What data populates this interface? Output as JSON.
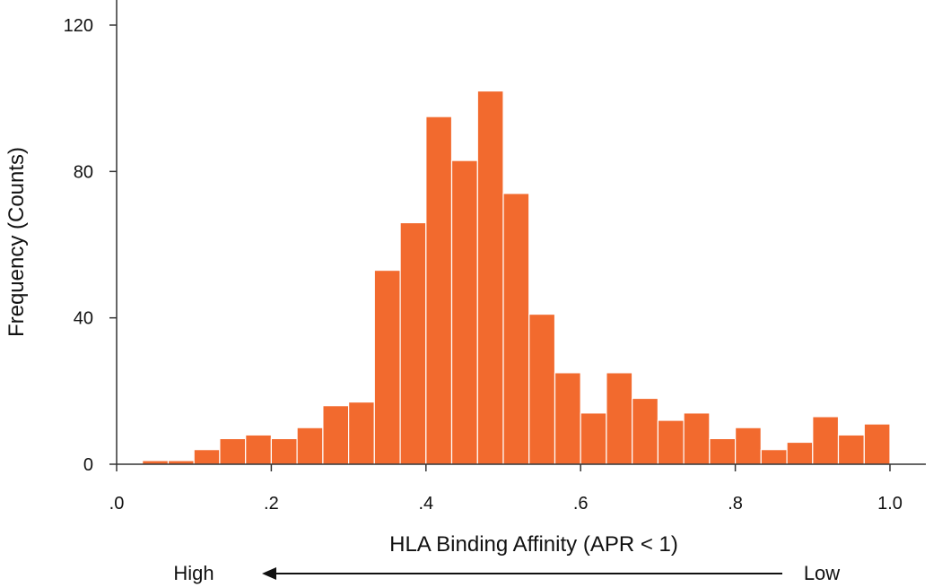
{
  "chart_data": {
    "type": "bar",
    "subtype": "histogram",
    "xlabel": "HLA Binding Affinity (APR < 1)",
    "ylabel": "Frequency (Counts)",
    "xlim": [
      0,
      1.0
    ],
    "ylim": [
      0,
      120
    ],
    "x_ticks": [
      0,
      0.2,
      0.4,
      0.6,
      0.8,
      1.0
    ],
    "x_tick_labels": [
      ".0",
      ".2",
      ".4",
      ".6",
      ".8",
      "1.0"
    ],
    "y_ticks": [
      0,
      40,
      80,
      120
    ],
    "y_tick_labels": [
      "0",
      "40",
      "80",
      "120"
    ],
    "bin_width": 0.0333,
    "bins": [
      {
        "x0": 0.0333,
        "x1": 0.0667,
        "count": 1
      },
      {
        "x0": 0.0667,
        "x1": 0.1,
        "count": 1
      },
      {
        "x0": 0.1,
        "x1": 0.1333,
        "count": 4
      },
      {
        "x0": 0.1333,
        "x1": 0.1667,
        "count": 7
      },
      {
        "x0": 0.1667,
        "x1": 0.2,
        "count": 8
      },
      {
        "x0": 0.2,
        "x1": 0.2333,
        "count": 7
      },
      {
        "x0": 0.2333,
        "x1": 0.2667,
        "count": 10
      },
      {
        "x0": 0.2667,
        "x1": 0.3,
        "count": 16
      },
      {
        "x0": 0.3,
        "x1": 0.3333,
        "count": 17
      },
      {
        "x0": 0.3333,
        "x1": 0.3667,
        "count": 53
      },
      {
        "x0": 0.3667,
        "x1": 0.4,
        "count": 66
      },
      {
        "x0": 0.4,
        "x1": 0.4333,
        "count": 95
      },
      {
        "x0": 0.4333,
        "x1": 0.4667,
        "count": 83
      },
      {
        "x0": 0.4667,
        "x1": 0.5,
        "count": 102
      },
      {
        "x0": 0.5,
        "x1": 0.5333,
        "count": 74
      },
      {
        "x0": 0.5333,
        "x1": 0.5667,
        "count": 41
      },
      {
        "x0": 0.5667,
        "x1": 0.6,
        "count": 25
      },
      {
        "x0": 0.6,
        "x1": 0.6333,
        "count": 14
      },
      {
        "x0": 0.6333,
        "x1": 0.6667,
        "count": 25
      },
      {
        "x0": 0.6667,
        "x1": 0.7,
        "count": 18
      },
      {
        "x0": 0.7,
        "x1": 0.7333,
        "count": 12
      },
      {
        "x0": 0.7333,
        "x1": 0.7667,
        "count": 14
      },
      {
        "x0": 0.7667,
        "x1": 0.8,
        "count": 7
      },
      {
        "x0": 0.8,
        "x1": 0.8333,
        "count": 10
      },
      {
        "x0": 0.8333,
        "x1": 0.8667,
        "count": 4
      },
      {
        "x0": 0.8667,
        "x1": 0.9,
        "count": 6
      },
      {
        "x0": 0.9,
        "x1": 0.9333,
        "count": 13
      },
      {
        "x0": 0.9333,
        "x1": 0.9667,
        "count": 8
      },
      {
        "x0": 0.9667,
        "x1": 1.0,
        "count": 11
      }
    ],
    "bar_color": "#f26a2e",
    "grid": false,
    "direction_labels": {
      "left": "High",
      "right": "Low"
    }
  }
}
